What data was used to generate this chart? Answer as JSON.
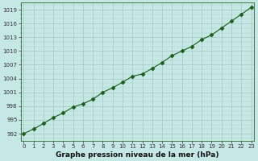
{
  "x": [
    0,
    1,
    2,
    3,
    4,
    5,
    6,
    7,
    8,
    9,
    10,
    11,
    12,
    13,
    14,
    15,
    16,
    17,
    18,
    19,
    20,
    21,
    22,
    23
  ],
  "y": [
    992.0,
    993.0,
    994.2,
    995.5,
    996.5,
    997.8,
    998.5,
    999.5,
    1001.0,
    1002.0,
    1003.2,
    1004.5,
    1005.0,
    1006.2,
    1007.5,
    1009.0,
    1010.0,
    1011.0,
    1012.5,
    1013.5,
    1015.0,
    1016.5,
    1018.0,
    1019.5
  ],
  "line_color": "#1a5c1a",
  "marker": "D",
  "marker_size": 2.5,
  "background_color": "#c5e8e5",
  "grid_color": "#a8ccc8",
  "xlabel": "Graphe pression niveau de la mer (hPa)",
  "xlabel_fontsize": 6.5,
  "ylabel_ticks": [
    992,
    995,
    998,
    1001,
    1004,
    1007,
    1010,
    1013,
    1016,
    1019
  ],
  "xlim": [
    -0.3,
    23.3
  ],
  "ylim": [
    990.5,
    1020.5
  ],
  "xticks": [
    0,
    1,
    2,
    3,
    4,
    5,
    6,
    7,
    8,
    9,
    10,
    11,
    12,
    13,
    14,
    15,
    16,
    17,
    18,
    19,
    20,
    21,
    22,
    23
  ],
  "tick_fontsize": 5.0,
  "xlabel_fontweight": "bold",
  "spine_color": "#336633",
  "tick_color": "#333333"
}
